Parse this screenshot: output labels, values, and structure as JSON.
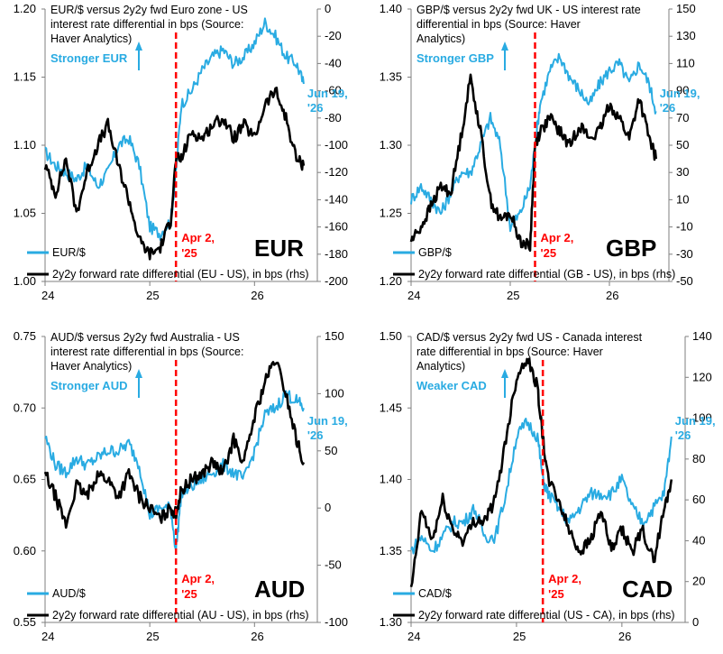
{
  "colors": {
    "fx": "#29abe2",
    "diff": "#000000",
    "event": "#ff0000",
    "axis": "#7f7f7f",
    "annotation": "#29abe2"
  },
  "chart_data": [
    {
      "type": "line",
      "title": "EUR/$ versus 2y2y fwd Euro zone - US interest rate differential in bps (Source: Haver Analytics)",
      "currency_label": "EUR",
      "direction_label": "Stronger EUR",
      "end_label": "Jun 19, '26",
      "event_label": "Apr 2, '25",
      "x_ticks": [
        "24",
        "25",
        "26"
      ],
      "x_range": [
        2024.0,
        2026.6
      ],
      "event_x": 2025.25,
      "y_left": {
        "range": [
          1.0,
          1.2
        ],
        "ticks": [
          "1.00",
          "1.05",
          "1.10",
          "1.15",
          "1.20"
        ]
      },
      "y_right": {
        "range": [
          -200,
          0
        ],
        "ticks": [
          "-200",
          "-180",
          "-160",
          "-140",
          "-120",
          "-100",
          "-80",
          "-60",
          "-40",
          "-20",
          "0"
        ]
      },
      "series": [
        {
          "name": "EUR/$",
          "axis": "left",
          "color": "#29abe2",
          "x": [
            2024.0,
            2024.1,
            2024.2,
            2024.3,
            2024.4,
            2024.5,
            2024.6,
            2024.7,
            2024.8,
            2024.9,
            2025.0,
            2025.1,
            2025.2,
            2025.25,
            2025.3,
            2025.4,
            2025.5,
            2025.6,
            2025.7,
            2025.8,
            2025.9,
            2026.0,
            2026.1,
            2026.2,
            2026.3,
            2026.4,
            2026.47
          ],
          "y": [
            1.095,
            1.085,
            1.08,
            1.075,
            1.085,
            1.07,
            1.08,
            1.1,
            1.105,
            1.085,
            1.04,
            1.035,
            1.045,
            1.08,
            1.13,
            1.14,
            1.155,
            1.165,
            1.17,
            1.16,
            1.165,
            1.175,
            1.19,
            1.18,
            1.165,
            1.16,
            1.145
          ]
        },
        {
          "name": "2y2y forward rate differential (EU - US), in bps (rhs)",
          "axis": "right",
          "color": "#000000",
          "x": [
            2024.0,
            2024.1,
            2024.2,
            2024.3,
            2024.4,
            2024.5,
            2024.6,
            2024.7,
            2024.8,
            2024.9,
            2025.0,
            2025.1,
            2025.2,
            2025.25,
            2025.3,
            2025.4,
            2025.5,
            2025.6,
            2025.7,
            2025.8,
            2025.9,
            2026.0,
            2026.1,
            2026.2,
            2026.3,
            2026.4,
            2026.47
          ],
          "y": [
            -115,
            -135,
            -110,
            -150,
            -120,
            -100,
            -85,
            -115,
            -140,
            -170,
            -180,
            -175,
            -155,
            -110,
            -110,
            -90,
            -95,
            -85,
            -80,
            -95,
            -85,
            -95,
            -70,
            -60,
            -80,
            -110,
            -115
          ]
        }
      ]
    },
    {
      "type": "line",
      "title": "GBP/$ versus 2y2y fwd UK - US interest rate differential in bps (Source: Haver Analytics)",
      "currency_label": "GBP",
      "direction_label": "Stronger GBP",
      "end_label": "Jun 19, '26",
      "event_label": "Apr 2, '25",
      "x_ticks": [
        "24",
        "25",
        "26"
      ],
      "x_range": [
        2024.0,
        2026.6
      ],
      "event_x": 2025.25,
      "y_left": {
        "range": [
          1.2,
          1.4
        ],
        "ticks": [
          "1.20",
          "1.25",
          "1.30",
          "1.35",
          "1.40"
        ]
      },
      "y_right": {
        "range": [
          -50,
          150
        ],
        "ticks": [
          "-50",
          "-30",
          "-10",
          "10",
          "30",
          "50",
          "70",
          "90",
          "110",
          "130",
          "150"
        ]
      },
      "series": [
        {
          "name": "GBP/$",
          "axis": "left",
          "color": "#29abe2",
          "x": [
            2024.0,
            2024.1,
            2024.2,
            2024.3,
            2024.4,
            2024.5,
            2024.6,
            2024.7,
            2024.8,
            2024.9,
            2025.0,
            2025.1,
            2025.2,
            2025.25,
            2025.3,
            2025.4,
            2025.5,
            2025.6,
            2025.7,
            2025.8,
            2025.9,
            2026.0,
            2026.1,
            2026.2,
            2026.3,
            2026.4,
            2026.47
          ],
          "y": [
            1.26,
            1.27,
            1.26,
            1.25,
            1.265,
            1.28,
            1.28,
            1.3,
            1.32,
            1.3,
            1.24,
            1.25,
            1.27,
            1.3,
            1.33,
            1.355,
            1.365,
            1.35,
            1.34,
            1.33,
            1.345,
            1.355,
            1.36,
            1.345,
            1.36,
            1.345,
            1.325
          ]
        },
        {
          "name": "2y2y forward rate differential (GB - US), in bps (rhs)",
          "axis": "right",
          "color": "#000000",
          "x": [
            2024.0,
            2024.1,
            2024.2,
            2024.3,
            2024.4,
            2024.5,
            2024.6,
            2024.7,
            2024.8,
            2024.9,
            2025.0,
            2025.1,
            2025.2,
            2025.25,
            2025.3,
            2025.4,
            2025.5,
            2025.6,
            2025.7,
            2025.8,
            2025.9,
            2026.0,
            2026.1,
            2026.2,
            2026.3,
            2026.4,
            2026.47
          ],
          "y": [
            -20,
            -10,
            5,
            20,
            15,
            55,
            100,
            60,
            10,
            -5,
            0,
            -20,
            -25,
            50,
            60,
            70,
            60,
            50,
            65,
            55,
            60,
            80,
            70,
            55,
            85,
            55,
            40
          ]
        }
      ]
    },
    {
      "type": "line",
      "title": "AUD/$ versus 2y2y fwd Australia - US interest rate differential in bps (Source: Haver Analytics)",
      "currency_label": "AUD",
      "direction_label": "Stronger AUD",
      "end_label": "Jun 19, '26",
      "event_label": "Apr 2, '25",
      "x_ticks": [
        "24",
        "25",
        "26"
      ],
      "x_range": [
        2024.0,
        2026.6
      ],
      "event_x": 2025.25,
      "y_left": {
        "range": [
          0.55,
          0.75
        ],
        "ticks": [
          "0.55",
          "0.60",
          "0.65",
          "0.70",
          "0.75"
        ]
      },
      "y_right": {
        "range": [
          -100,
          150
        ],
        "ticks": [
          "-100",
          "-50",
          "0",
          "50",
          "100",
          "150"
        ]
      },
      "series": [
        {
          "name": "AUD/$",
          "axis": "left",
          "color": "#29abe2",
          "x": [
            2024.0,
            2024.1,
            2024.2,
            2024.3,
            2024.4,
            2024.5,
            2024.6,
            2024.7,
            2024.8,
            2024.9,
            2025.0,
            2025.1,
            2025.2,
            2025.25,
            2025.3,
            2025.4,
            2025.5,
            2025.6,
            2025.7,
            2025.8,
            2025.9,
            2026.0,
            2026.1,
            2026.2,
            2026.3,
            2026.4,
            2026.47
          ],
          "y": [
            0.68,
            0.66,
            0.655,
            0.665,
            0.66,
            0.665,
            0.67,
            0.67,
            0.675,
            0.66,
            0.625,
            0.63,
            0.63,
            0.6,
            0.64,
            0.645,
            0.65,
            0.655,
            0.66,
            0.655,
            0.65,
            0.67,
            0.695,
            0.7,
            0.71,
            0.705,
            0.7
          ]
        },
        {
          "name": "2y2y forward rate differential (AU - US), in bps (rhs)",
          "axis": "right",
          "color": "#000000",
          "x": [
            2024.0,
            2024.1,
            2024.2,
            2024.3,
            2024.4,
            2024.5,
            2024.6,
            2024.7,
            2024.8,
            2024.9,
            2025.0,
            2025.1,
            2025.2,
            2025.25,
            2025.3,
            2025.4,
            2025.5,
            2025.6,
            2025.7,
            2025.8,
            2025.9,
            2026.0,
            2026.1,
            2026.2,
            2026.3,
            2026.4,
            2026.47
          ],
          "y": [
            30,
            10,
            -15,
            20,
            10,
            30,
            25,
            10,
            30,
            10,
            0,
            -10,
            0,
            -5,
            15,
            25,
            30,
            40,
            30,
            60,
            40,
            80,
            110,
            130,
            100,
            60,
            40
          ]
        }
      ]
    },
    {
      "type": "line",
      "title": "CAD/$ versus 2y2y fwd US - Canada interest rate differential in bps (Source: Haver Analytics)",
      "currency_label": "CAD",
      "direction_label": "Weaker CAD",
      "end_label": "Jun 19, '26",
      "event_label": "Apr 2, '25",
      "x_ticks": [
        "24",
        "25",
        "26"
      ],
      "x_range": [
        2024.0,
        2026.6
      ],
      "event_x": 2025.25,
      "y_left": {
        "range": [
          1.3,
          1.5
        ],
        "ticks": [
          "1.30",
          "1.35",
          "1.40",
          "1.45",
          "1.50"
        ]
      },
      "y_right": {
        "range": [
          0,
          140
        ],
        "ticks": [
          "0",
          "20",
          "40",
          "60",
          "80",
          "100",
          "120",
          "140"
        ]
      },
      "series": [
        {
          "name": "CAD/$",
          "axis": "left",
          "color": "#29abe2",
          "x": [
            2024.0,
            2024.1,
            2024.2,
            2024.3,
            2024.4,
            2024.5,
            2024.6,
            2024.7,
            2024.8,
            2024.9,
            2025.0,
            2025.1,
            2025.2,
            2025.25,
            2025.3,
            2025.4,
            2025.5,
            2025.6,
            2025.7,
            2025.8,
            2025.9,
            2026.0,
            2026.1,
            2026.2,
            2026.3,
            2026.4,
            2026.47
          ],
          "y": [
            1.35,
            1.36,
            1.35,
            1.36,
            1.37,
            1.37,
            1.38,
            1.36,
            1.36,
            1.39,
            1.43,
            1.44,
            1.43,
            1.4,
            1.39,
            1.38,
            1.37,
            1.38,
            1.39,
            1.39,
            1.39,
            1.4,
            1.38,
            1.37,
            1.38,
            1.39,
            1.43
          ]
        },
        {
          "name": "2y2y forward rate differential (US - CA), in bps (rhs)",
          "axis": "right",
          "color": "#000000",
          "x": [
            2024.0,
            2024.1,
            2024.2,
            2024.3,
            2024.4,
            2024.5,
            2024.6,
            2024.7,
            2024.8,
            2024.9,
            2025.0,
            2025.1,
            2025.2,
            2025.25,
            2025.3,
            2025.4,
            2025.5,
            2025.6,
            2025.7,
            2025.8,
            2025.9,
            2026.0,
            2026.1,
            2026.2,
            2026.3,
            2026.4,
            2026.47
          ],
          "y": [
            15,
            55,
            40,
            60,
            45,
            40,
            50,
            50,
            60,
            90,
            120,
            130,
            115,
            90,
            70,
            60,
            45,
            35,
            40,
            55,
            35,
            45,
            35,
            45,
            30,
            55,
            70
          ]
        }
      ]
    }
  ]
}
